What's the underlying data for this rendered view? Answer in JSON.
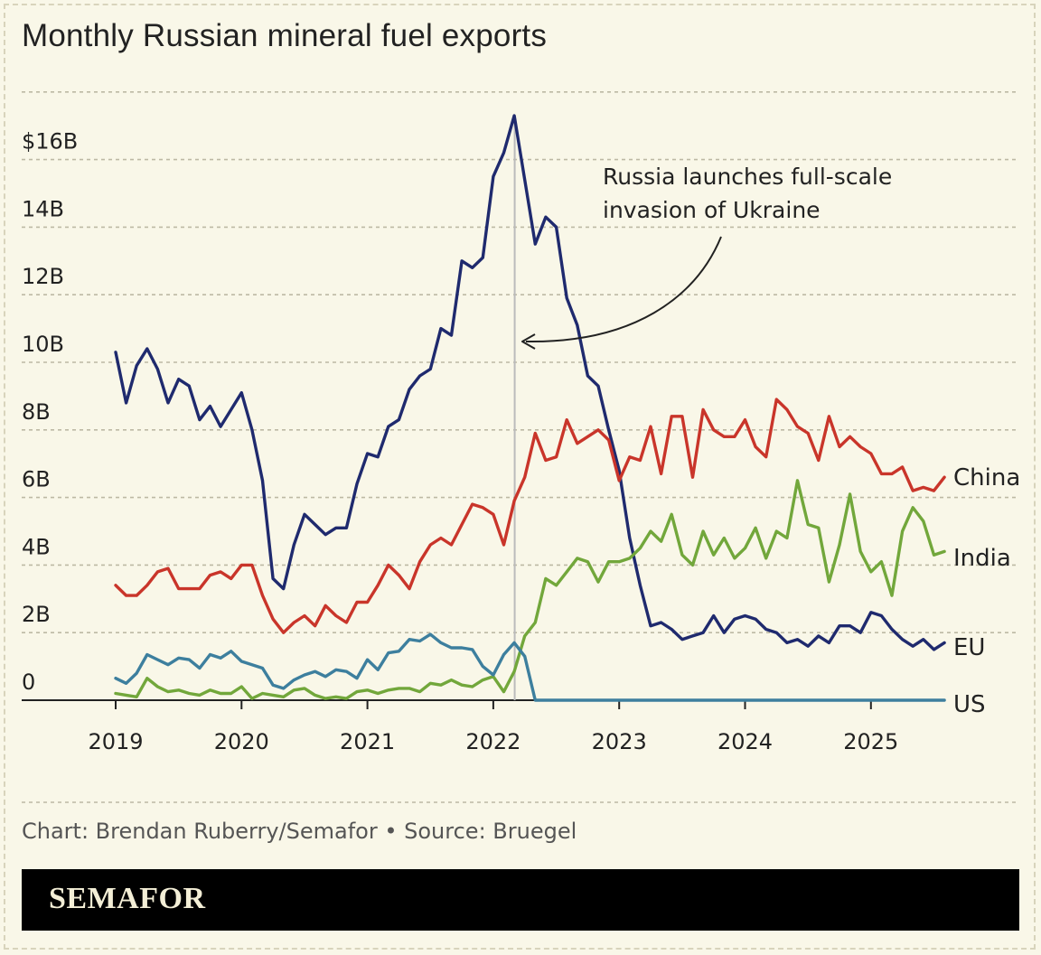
{
  "title": "Monthly Russian mineral fuel exports",
  "source": "Chart: Brendan Ruberry/Semafor • Source: Bruegel",
  "brand": "SEMAFOR",
  "colors": {
    "background": "#f9f7e8",
    "grid": "#bdb9a4",
    "axis": "#222222",
    "vline": "#bbbbbb"
  },
  "chart_data": {
    "type": "line",
    "title": "Monthly Russian mineral fuel exports",
    "unit": "USD",
    "y_ticks": [
      {
        "value": 0,
        "label": "0"
      },
      {
        "value": 2,
        "label": "2B"
      },
      {
        "value": 4,
        "label": "4B"
      },
      {
        "value": 6,
        "label": "6B"
      },
      {
        "value": 8,
        "label": "8B"
      },
      {
        "value": 10,
        "label": "10B"
      },
      {
        "value": 12,
        "label": "12B"
      },
      {
        "value": 14,
        "label": "14B"
      },
      {
        "value": 16,
        "label": "$16B"
      }
    ],
    "x_ticks": [
      {
        "value": 2019,
        "label": "2019"
      },
      {
        "value": 2020,
        "label": "2020"
      },
      {
        "value": 2021,
        "label": "2021"
      },
      {
        "value": 2022,
        "label": "2022"
      },
      {
        "value": 2023,
        "label": "2023"
      },
      {
        "value": 2024,
        "label": "2024"
      },
      {
        "value": 2025,
        "label": "2025"
      }
    ],
    "xlim": [
      2019,
      2025.5
    ],
    "ylim": [
      0,
      18
    ],
    "grid": "horizontal dashed",
    "legend": "direct labels at line ends",
    "x_start": "2019-01",
    "x_step": "1 month",
    "annotation": {
      "x": 2022.17,
      "lines": [
        "Russia launches full-scale",
        "invasion of Ukraine"
      ]
    },
    "series": [
      {
        "name": "EU",
        "color": "#1f2a6e",
        "values": [
          10.3,
          8.8,
          9.9,
          10.4,
          9.8,
          8.8,
          9.5,
          9.3,
          8.3,
          8.7,
          8.1,
          8.6,
          9.1,
          8.0,
          6.5,
          3.6,
          3.3,
          4.6,
          5.5,
          5.2,
          4.9,
          5.1,
          5.1,
          6.4,
          7.3,
          7.2,
          8.1,
          8.3,
          9.2,
          9.6,
          9.8,
          11.0,
          10.8,
          13.0,
          12.8,
          13.1,
          15.5,
          16.2,
          17.3,
          15.4,
          13.5,
          14.3,
          14.0,
          11.9,
          11.1,
          9.6,
          9.3,
          8.0,
          6.8,
          4.8,
          3.4,
          2.2,
          2.3,
          2.1,
          1.8,
          1.9,
          2.0,
          2.5,
          2.0,
          2.4,
          2.5,
          2.4,
          2.1,
          2.0,
          1.7,
          1.8,
          1.6,
          1.9,
          1.7,
          2.2,
          2.2,
          2.0,
          2.6,
          2.5,
          2.1,
          1.8,
          1.6,
          1.8,
          1.5,
          1.7
        ]
      },
      {
        "name": "China",
        "color": "#c9352a",
        "values": [
          3.4,
          3.1,
          3.1,
          3.4,
          3.8,
          3.9,
          3.3,
          3.3,
          3.3,
          3.7,
          3.8,
          3.6,
          4.0,
          4.0,
          3.1,
          2.4,
          2.0,
          2.3,
          2.5,
          2.2,
          2.8,
          2.5,
          2.3,
          2.9,
          2.9,
          3.4,
          4.0,
          3.7,
          3.3,
          4.1,
          4.6,
          4.8,
          4.6,
          5.2,
          5.8,
          5.7,
          5.5,
          4.6,
          5.9,
          6.6,
          7.9,
          7.1,
          7.2,
          8.3,
          7.6,
          7.8,
          8.0,
          7.7,
          6.5,
          7.2,
          7.1,
          8.1,
          6.7,
          8.4,
          8.4,
          6.6,
          8.6,
          8.0,
          7.8,
          7.8,
          8.3,
          7.5,
          7.2,
          8.9,
          8.6,
          8.1,
          7.9,
          7.1,
          8.4,
          7.5,
          7.8,
          7.5,
          7.3,
          6.7,
          6.7,
          6.9,
          6.2,
          6.3,
          6.2,
          6.6
        ]
      },
      {
        "name": "India",
        "color": "#72a73b",
        "values": [
          0.2,
          0.15,
          0.1,
          0.65,
          0.4,
          0.25,
          0.3,
          0.2,
          0.15,
          0.3,
          0.2,
          0.2,
          0.4,
          0.05,
          0.2,
          0.15,
          0.1,
          0.3,
          0.35,
          0.15,
          0.05,
          0.1,
          0.05,
          0.25,
          0.3,
          0.2,
          0.3,
          0.35,
          0.35,
          0.25,
          0.5,
          0.45,
          0.6,
          0.45,
          0.4,
          0.6,
          0.7,
          0.25,
          0.85,
          1.9,
          2.3,
          3.6,
          3.4,
          3.8,
          4.2,
          4.1,
          3.5,
          4.1,
          4.1,
          4.2,
          4.5,
          5.0,
          4.7,
          5.5,
          4.3,
          4.0,
          5.0,
          4.3,
          4.8,
          4.2,
          4.5,
          5.1,
          4.2,
          5.0,
          4.8,
          6.5,
          5.2,
          5.1,
          3.5,
          4.6,
          6.1,
          4.4,
          3.8,
          4.1,
          3.1,
          5.0,
          5.7,
          5.3,
          4.3,
          4.4
        ]
      },
      {
        "name": "US",
        "color": "#3d7f9e",
        "values": [
          0.65,
          0.5,
          0.8,
          1.35,
          1.2,
          1.05,
          1.25,
          1.2,
          0.95,
          1.35,
          1.25,
          1.45,
          1.15,
          1.05,
          0.95,
          0.45,
          0.35,
          0.6,
          0.75,
          0.85,
          0.7,
          0.9,
          0.85,
          0.65,
          1.2,
          0.9,
          1.4,
          1.45,
          1.8,
          1.75,
          1.95,
          1.7,
          1.55,
          1.55,
          1.5,
          1.0,
          0.75,
          1.35,
          1.7,
          1.3,
          0.0,
          0.0,
          0.0,
          0.0,
          0.0,
          0.0,
          0.0,
          0.0,
          0.0,
          0.0,
          0.0,
          0.0,
          0.0,
          0.0,
          0.0,
          0.0,
          0.0,
          0.0,
          0.0,
          0.0,
          0.0,
          0.0,
          0.0,
          0.0,
          0.0,
          0.0,
          0.0,
          0.0,
          0.0,
          0.0,
          0.0,
          0.0,
          0.0,
          0.0,
          0.0,
          0.0,
          0.0,
          0.0,
          0.0,
          0.0
        ]
      }
    ]
  }
}
